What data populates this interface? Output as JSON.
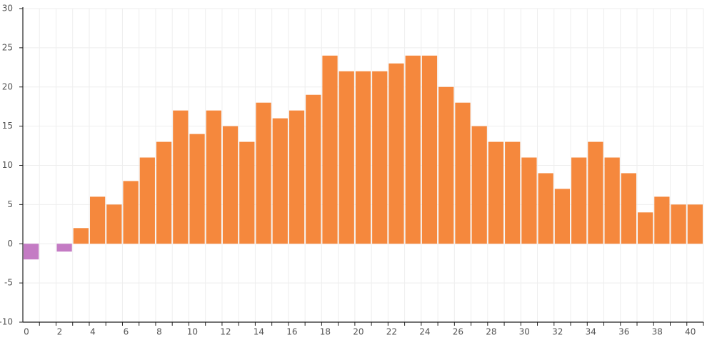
{
  "chart_data": {
    "type": "bar",
    "categories": [
      "0",
      null,
      "2",
      null,
      "4",
      null,
      "6",
      null,
      "8",
      null,
      "10",
      null,
      "12",
      null,
      "14",
      null,
      "16",
      null,
      "18",
      null,
      "20",
      null,
      "22",
      null,
      "24",
      null,
      "26",
      null,
      "28",
      null,
      "30",
      null,
      "32",
      null,
      "34",
      null,
      "36",
      null,
      "38",
      null,
      "40"
    ],
    "values": [
      -2,
      0,
      -1,
      2,
      6,
      5,
      8,
      11,
      13,
      17,
      14,
      17,
      15,
      13,
      18,
      16,
      17,
      19,
      24,
      22,
      22,
      22,
      23,
      24,
      24,
      20,
      18,
      15,
      13,
      13,
      11,
      9,
      7,
      11,
      13,
      11,
      9,
      4,
      6,
      5,
      5
    ],
    "color": "#f5883d",
    "negative_color": "#c47bc4",
    "ylim": [
      -10,
      30
    ],
    "yticks": [
      -10,
      -5,
      0,
      5,
      10,
      15,
      20,
      25,
      30
    ],
    "grid": true
  }
}
